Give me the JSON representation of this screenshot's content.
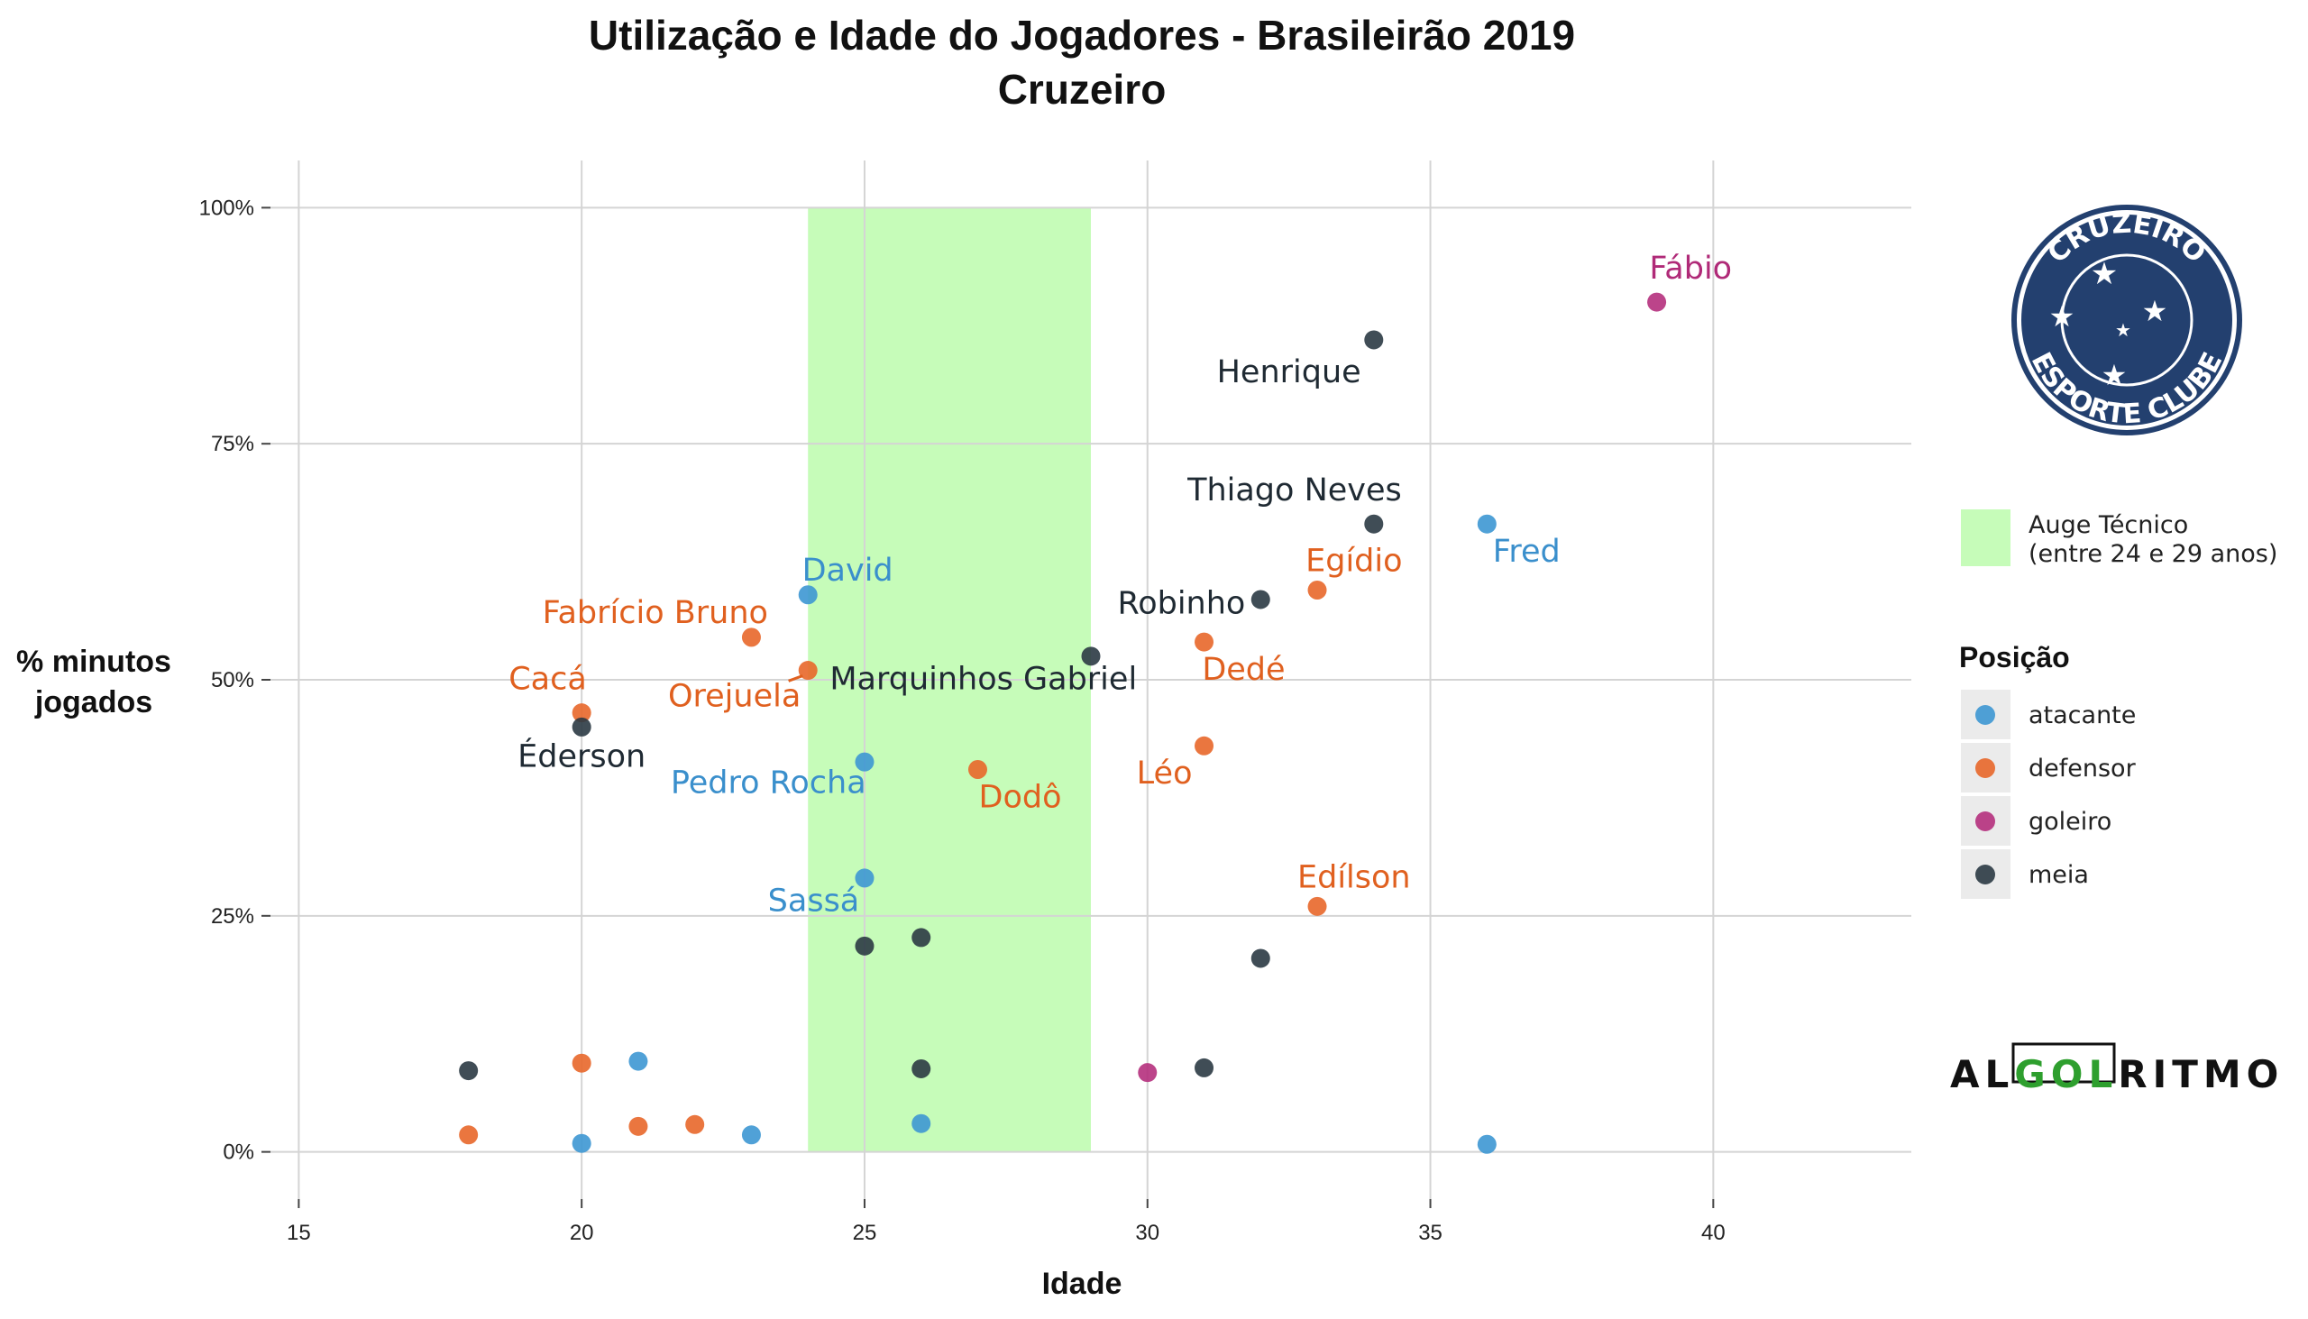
{
  "chart_data": {
    "type": "scatter",
    "title": "Utilização e Idade do Jogadores - Brasileirão 2019",
    "subtitle": "Cruzeiro",
    "xlabel": "Idade",
    "ylabel": [
      "% minutos",
      "jogados"
    ],
    "xlim": [
      14.5,
      43.5
    ],
    "ylim": [
      -0.05,
      1.05
    ],
    "x_ticks": [
      15,
      20,
      25,
      30,
      35,
      40
    ],
    "y_ticks": [
      0,
      0.25,
      0.5,
      0.75,
      1.0
    ],
    "y_tick_labels": [
      "0%",
      "25%",
      "50%",
      "75%",
      "100%"
    ],
    "grid": true,
    "highlight_band": {
      "x_from": 24,
      "x_to": 29,
      "color": "#c6fcb9",
      "label_lines": [
        "Auge Técnico",
        "(entre 24 e 29 anos)"
      ]
    },
    "legend": {
      "title": "Posição",
      "position": "right",
      "entries": [
        {
          "key": "atacante",
          "label": "atacante",
          "color": "#3d97d3"
        },
        {
          "key": "defensor",
          "label": "defensor",
          "color": "#e8672a"
        },
        {
          "key": "goleiro",
          "label": "goleiro",
          "color": "#b5307d"
        },
        {
          "key": "meia",
          "label": "meia",
          "color": "#2b3a44"
        }
      ]
    },
    "label_colors": {
      "atacante": "#3a8fcc",
      "defensor": "#e0601f",
      "goleiro": "#b02a78",
      "meia": "#1f2a33"
    },
    "points": [
      {
        "name": "Fábio",
        "pos": "goleiro",
        "x": 39,
        "y": 0.9,
        "lx": 39.6,
        "ly": 0.925,
        "anchor": "middle"
      },
      {
        "name": "Henrique",
        "pos": "meia",
        "x": 34,
        "y": 0.86,
        "lx": 32.5,
        "ly": 0.815,
        "anchor": "middle"
      },
      {
        "name": "Thiago Neves",
        "pos": "meia",
        "x": 34,
        "y": 0.665,
        "lx": 32.6,
        "ly": 0.69,
        "anchor": "middle"
      },
      {
        "name": "Fred",
        "pos": "atacante",
        "x": 36,
        "y": 0.665,
        "lx": 36.7,
        "ly": 0.625,
        "anchor": "middle"
      },
      {
        "name": "Egídio",
        "pos": "defensor",
        "x": 33,
        "y": 0.595,
        "lx": 33.65,
        "ly": 0.615,
        "anchor": "middle"
      },
      {
        "name": "Robinho",
        "pos": "meia",
        "x": 32,
        "y": 0.585,
        "lx": 30.6,
        "ly": 0.57,
        "anchor": "middle"
      },
      {
        "name": "David",
        "pos": "atacante",
        "x": 24,
        "y": 0.59,
        "lx": 24.7,
        "ly": 0.605,
        "anchor": "middle"
      },
      {
        "name": "Fabrício Bruno",
        "pos": "defensor",
        "x": 23,
        "y": 0.545,
        "lx": 21.3,
        "ly": 0.56,
        "anchor": "middle"
      },
      {
        "name": "Dedé",
        "pos": "defensor",
        "x": 31,
        "y": 0.54,
        "lx": 31.7,
        "ly": 0.5,
        "anchor": "middle"
      },
      {
        "name": "Marquinhos Gabriel",
        "pos": "meia",
        "x": 29,
        "y": 0.525,
        "lx": 27.1,
        "ly": 0.49,
        "anchor": "middle"
      },
      {
        "name": "Orejuela",
        "pos": "defensor",
        "x": 24,
        "y": 0.51,
        "lx": 22.7,
        "ly": 0.472,
        "anchor": "middle",
        "leader": true
      },
      {
        "name": "Cacá",
        "pos": "defensor",
        "x": 20,
        "y": 0.465,
        "lx": 19.4,
        "ly": 0.49,
        "anchor": "middle"
      },
      {
        "name": "Éderson",
        "pos": "meia",
        "x": 20,
        "y": 0.45,
        "lx": 20.0,
        "ly": 0.408,
        "anchor": "middle"
      },
      {
        "name": "Léo",
        "pos": "defensor",
        "x": 31,
        "y": 0.43,
        "lx": 30.3,
        "ly": 0.39,
        "anchor": "middle"
      },
      {
        "name": "Pedro Rocha",
        "pos": "atacante",
        "x": 25,
        "y": 0.413,
        "lx": 23.3,
        "ly": 0.38,
        "anchor": "middle"
      },
      {
        "name": "Dodô",
        "pos": "defensor",
        "x": 27,
        "y": 0.405,
        "lx": 27.75,
        "ly": 0.365,
        "anchor": "middle"
      },
      {
        "name": "Sassá",
        "pos": "atacante",
        "x": 25,
        "y": 0.29,
        "lx": 24.1,
        "ly": 0.255,
        "anchor": "middle"
      },
      {
        "name": "Edílson",
        "pos": "defensor",
        "x": 33,
        "y": 0.26,
        "lx": 33.65,
        "ly": 0.28,
        "anchor": "middle"
      },
      {
        "name": "",
        "pos": "meia",
        "x": 26,
        "y": 0.227
      },
      {
        "name": "",
        "pos": "meia",
        "x": 25,
        "y": 0.218
      },
      {
        "name": "",
        "pos": "meia",
        "x": 32,
        "y": 0.205
      },
      {
        "name": "",
        "pos": "meia",
        "x": 18,
        "y": 0.086
      },
      {
        "name": "",
        "pos": "defensor",
        "x": 20,
        "y": 0.094
      },
      {
        "name": "",
        "pos": "atacante",
        "x": 21,
        "y": 0.096
      },
      {
        "name": "",
        "pos": "meia",
        "x": 26,
        "y": 0.088
      },
      {
        "name": "",
        "pos": "goleiro",
        "x": 30,
        "y": 0.084
      },
      {
        "name": "",
        "pos": "meia",
        "x": 31,
        "y": 0.089
      },
      {
        "name": "",
        "pos": "defensor",
        "x": 18,
        "y": 0.018
      },
      {
        "name": "",
        "pos": "atacante",
        "x": 20,
        "y": 0.009
      },
      {
        "name": "",
        "pos": "defensor",
        "x": 21,
        "y": 0.027
      },
      {
        "name": "",
        "pos": "defensor",
        "x": 22,
        "y": 0.029
      },
      {
        "name": "",
        "pos": "atacante",
        "x": 23,
        "y": 0.018
      },
      {
        "name": "",
        "pos": "atacante",
        "x": 26,
        "y": 0.03
      },
      {
        "name": "",
        "pos": "atacante",
        "x": 36,
        "y": 0.008
      }
    ]
  },
  "logo": {
    "crest_top_text": "CRUZEIRO",
    "crest_bottom_text": "ESPORTE CLUBE",
    "crest_color": "#23406f",
    "brand_parts": [
      "AL",
      "GOL",
      "RITMO"
    ],
    "brand_accent": "#2e9f2e"
  }
}
